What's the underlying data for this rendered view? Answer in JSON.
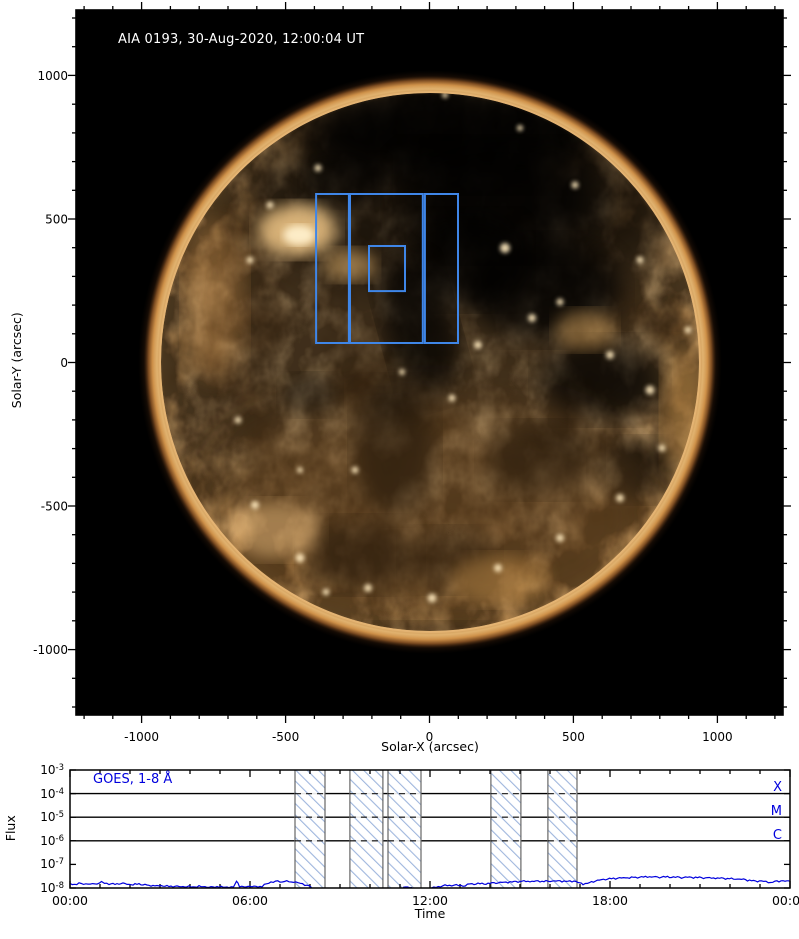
{
  "figure": {
    "image_panel": {
      "title": "AIA 0193, 30-Aug-2020, 12:00:04 UT",
      "xlabel": "Solar-X (arcsec)",
      "ylabel": "Solar-Y (arcsec)"
    },
    "goes_panel": {
      "legend": "GOES, 1-8 Å",
      "xlabel": "Time",
      "ylabel": "Flux",
      "class_labels": [
        "X",
        "M",
        "C"
      ]
    }
  },
  "chart_data": [
    {
      "type": "image",
      "title": "AIA 0193, 30-Aug-2020, 12:00:04 UT",
      "xlabel": "Solar-X (arcsec)",
      "ylabel": "Solar-Y (arcsec)",
      "xlim": [
        -1228,
        1228
      ],
      "ylim": [
        -1228,
        1228
      ],
      "x_ticks": [
        -1000,
        -500,
        0,
        500,
        1000
      ],
      "y_ticks": [
        1000,
        500,
        0,
        -500,
        -1000
      ],
      "minor_tick_step_arcsec": 100,
      "overlay_box_color": "#3F86E8",
      "overlay_boxes_arcsec": [
        {
          "x1": -394,
          "y1": 68,
          "x2": -280,
          "y2": 587
        },
        {
          "x1": -276,
          "y1": 68,
          "x2": -23,
          "y2": 587
        },
        {
          "x1": -16,
          "y1": 68,
          "x2": 99,
          "y2": 587
        },
        {
          "x1": -210,
          "y1": 249,
          "x2": -85,
          "y2": 406
        }
      ]
    },
    {
      "type": "line",
      "title": "GOES, 1-8 Å",
      "xlabel": "Time",
      "ylabel": "Flux",
      "x_tick_labels": [
        "00:00",
        "06:00",
        "12:00",
        "18:00",
        "00:00"
      ],
      "x_tick_hours": [
        0,
        6,
        12,
        18,
        24
      ],
      "xlim_hours": [
        0,
        24
      ],
      "y_tick_exponents": [
        -3,
        -4,
        -5,
        -6,
        -7,
        -8
      ],
      "ylim": [
        "1e-8",
        "1e-3"
      ],
      "gridline_exponents": [
        -4,
        -5,
        -6
      ],
      "flare_class_labels": [
        "X",
        "M",
        "C"
      ],
      "hatched_bands_hours": [
        [
          7.5,
          8.5
        ],
        [
          9.33,
          10.43
        ],
        [
          10.6,
          11.7
        ],
        [
          14.03,
          15.03
        ],
        [
          15.93,
          16.9
        ]
      ],
      "line_color": "#0000DD",
      "value_scale": "1e-8",
      "series": [
        {
          "name": "GOES 1-8 Å flux",
          "segments": [
            [
              [
                0,
                1.5
              ],
              [
                0.15,
                1.42
              ],
              [
                0.3,
                1.55
              ],
              [
                0.45,
                1.48
              ],
              [
                0.6,
                1.52
              ],
              [
                0.75,
                1.44
              ],
              [
                0.9,
                1.55
              ],
              [
                1.05,
                1.75
              ],
              [
                1.15,
                1.62
              ],
              [
                1.3,
                1.5
              ],
              [
                1.5,
                1.45
              ],
              [
                1.7,
                1.58
              ],
              [
                1.9,
                1.46
              ],
              [
                2.1,
                1.38
              ],
              [
                2.3,
                1.5
              ],
              [
                2.5,
                1.34
              ],
              [
                2.7,
                1.28
              ],
              [
                2.9,
                1.22
              ],
              [
                3.1,
                1.26
              ],
              [
                3.3,
                1.16
              ],
              [
                3.5,
                1.2
              ],
              [
                3.7,
                1.12
              ],
              [
                3.9,
                1.16
              ],
              [
                4.1,
                1.1
              ],
              [
                4.3,
                1.18
              ],
              [
                4.5,
                1.12
              ],
              [
                4.7,
                1.08
              ],
              [
                4.9,
                1.14
              ],
              [
                5.1,
                1.1
              ],
              [
                5.3,
                1.08
              ],
              [
                5.45,
                1.12
              ],
              [
                5.55,
                2.05
              ],
              [
                5.65,
                1.18
              ],
              [
                5.8,
                1.1
              ],
              [
                6.0,
                1.2
              ],
              [
                6.2,
                1.12
              ],
              [
                6.4,
                1.18
              ],
              [
                6.55,
                1.5
              ],
              [
                6.7,
                1.78
              ],
              [
                6.85,
                1.9
              ],
              [
                7.0,
                1.84
              ],
              [
                7.15,
                1.92
              ],
              [
                7.3,
                1.86
              ],
              [
                7.45,
                1.8
              ],
              [
                7.6,
                1.68
              ],
              [
                7.75,
                1.5
              ],
              [
                7.9,
                1.28
              ],
              [
                8.05,
                1.04
              ]
            ],
            [
              [
                11.1,
                1.03
              ],
              [
                11.25,
                1.1
              ],
              [
                11.4,
                1.04
              ]
            ],
            [
              [
                12.05,
                1.08
              ],
              [
                12.2,
                1.04
              ],
              [
                12.35,
                1.18
              ],
              [
                12.5,
                1.32
              ],
              [
                12.65,
                1.22
              ],
              [
                12.8,
                1.38
              ],
              [
                12.95,
                1.28
              ],
              [
                13.1,
                1.2
              ],
              [
                13.25,
                1.42
              ],
              [
                13.4,
                1.48
              ],
              [
                13.6,
                1.54
              ],
              [
                13.8,
                1.5
              ],
              [
                14.0,
                1.58
              ],
              [
                14.2,
                1.66
              ],
              [
                14.4,
                1.72
              ],
              [
                14.6,
                1.78
              ],
              [
                14.8,
                1.84
              ],
              [
                15.0,
                1.9
              ],
              [
                15.2,
                1.94
              ],
              [
                15.4,
                1.9
              ],
              [
                15.6,
                1.96
              ],
              [
                15.8,
                1.9
              ],
              [
                16.0,
                1.96
              ],
              [
                16.2,
                2.0
              ],
              [
                16.4,
                1.96
              ],
              [
                16.6,
                1.9
              ],
              [
                16.8,
                1.96
              ],
              [
                17.0,
                1.62
              ],
              [
                17.1,
                1.46
              ],
              [
                17.25,
                1.56
              ],
              [
                17.45,
                1.9
              ],
              [
                17.65,
                2.18
              ],
              [
                17.85,
                2.35
              ],
              [
                18.05,
                2.5
              ],
              [
                18.25,
                2.6
              ],
              [
                18.45,
                2.7
              ],
              [
                18.65,
                2.76
              ],
              [
                18.85,
                2.82
              ],
              [
                19.05,
                2.9
              ],
              [
                19.25,
                3.0
              ],
              [
                19.45,
                2.95
              ],
              [
                19.65,
                2.9
              ],
              [
                19.85,
                2.95
              ],
              [
                20.05,
                2.9
              ],
              [
                20.25,
                2.86
              ],
              [
                20.45,
                2.8
              ],
              [
                20.65,
                2.86
              ],
              [
                20.85,
                2.8
              ],
              [
                21.05,
                2.74
              ],
              [
                21.25,
                2.7
              ],
              [
                21.45,
                2.64
              ],
              [
                21.65,
                2.6
              ],
              [
                21.85,
                2.54
              ],
              [
                22.05,
                2.46
              ],
              [
                22.25,
                2.4
              ],
              [
                22.45,
                2.3
              ],
              [
                22.65,
                2.1
              ],
              [
                22.85,
                1.95
              ],
              [
                23.05,
                2.0
              ],
              [
                23.2,
                1.84
              ],
              [
                23.35,
                1.7
              ],
              [
                23.5,
                1.9
              ],
              [
                23.7,
                2.0
              ],
              [
                23.9,
                1.96
              ],
              [
                24,
                1.92
              ]
            ]
          ]
        }
      ]
    }
  ],
  "colors": {
    "overlay_box": "#3F86E8",
    "goes_blue": "#0000DD",
    "band_hatch": "#9FB6DD",
    "band_border": "#666666",
    "axis": "#000000"
  }
}
